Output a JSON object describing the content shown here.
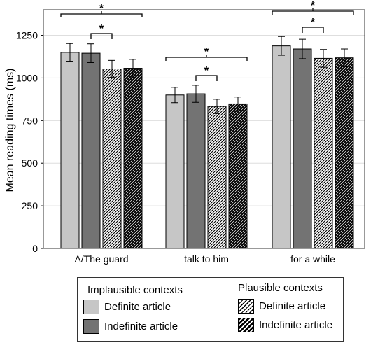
{
  "chart_data": {
    "type": "bar",
    "title": "",
    "xlabel": "",
    "ylabel": "Mean reading times (ms)",
    "ylim": [
      0,
      1400
    ],
    "yticks": [
      "0",
      "250",
      "500",
      "750",
      "1000",
      "1250"
    ],
    "grid": true,
    "categories": [
      "A/The guard",
      "talk to him",
      "for a while"
    ],
    "series": [
      {
        "name": "Definite article",
        "group": "Implausible contexts",
        "values": [
          1150,
          900,
          1188
        ],
        "error": [
          52,
          45,
          55
        ]
      },
      {
        "name": "Indefinite article",
        "group": "Implausible contexts",
        "values": [
          1145,
          907,
          1170
        ],
        "error": [
          55,
          50,
          57
        ]
      },
      {
        "name": "Definite article",
        "group": "Plausible contexts",
        "values": [
          1053,
          833,
          1115
        ],
        "error": [
          50,
          42,
          52
        ]
      },
      {
        "name": "Indefinite article",
        "group": "Plausible contexts",
        "values": [
          1057,
          848,
          1118
        ],
        "error": [
          52,
          40,
          52
        ]
      }
    ],
    "significance": [
      {
        "category": 0,
        "from_series": [
          0,
          1
        ],
        "to_series": [
          2,
          3
        ],
        "label": "*"
      },
      {
        "category": 0,
        "from_series": [
          1
        ],
        "to_series": [
          2
        ],
        "label": "*"
      },
      {
        "category": 1,
        "from_series": [
          0,
          1
        ],
        "to_series": [
          2,
          3
        ],
        "label": "*"
      },
      {
        "category": 1,
        "from_series": [
          1
        ],
        "to_series": [
          2
        ],
        "label": "*"
      },
      {
        "category": 2,
        "from_series": [
          0,
          1
        ],
        "to_series": [
          2,
          3
        ],
        "label": "*"
      },
      {
        "category": 2,
        "from_series": [
          1
        ],
        "to_series": [
          2
        ],
        "label": "*"
      }
    ],
    "legend": {
      "placement": "bottom",
      "groups": [
        {
          "title": "Implausible contexts",
          "items": [
            "Definite article",
            "Indefinite article"
          ]
        },
        {
          "title": "Plausible contexts",
          "items": [
            "Definite article",
            "Indefinite article"
          ]
        }
      ]
    },
    "colors": {
      "definite_implausible": "#c6c6c6",
      "indefinite_implausible": "#737373",
      "grid": "#dedede"
    }
  }
}
